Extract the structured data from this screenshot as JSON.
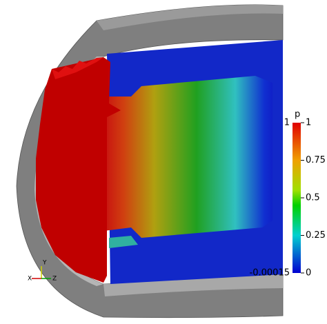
{
  "colorbar": {
    "title": "p",
    "range_labels": {
      "max": 1,
      "min": -0.00015
    },
    "ticks": [
      1,
      0.75,
      0.5,
      0.25,
      0
    ],
    "lim": [
      -0.00015,
      1
    ]
  },
  "axes_triad": {
    "y": "Y",
    "x": "X",
    "z": "Z"
  }
}
